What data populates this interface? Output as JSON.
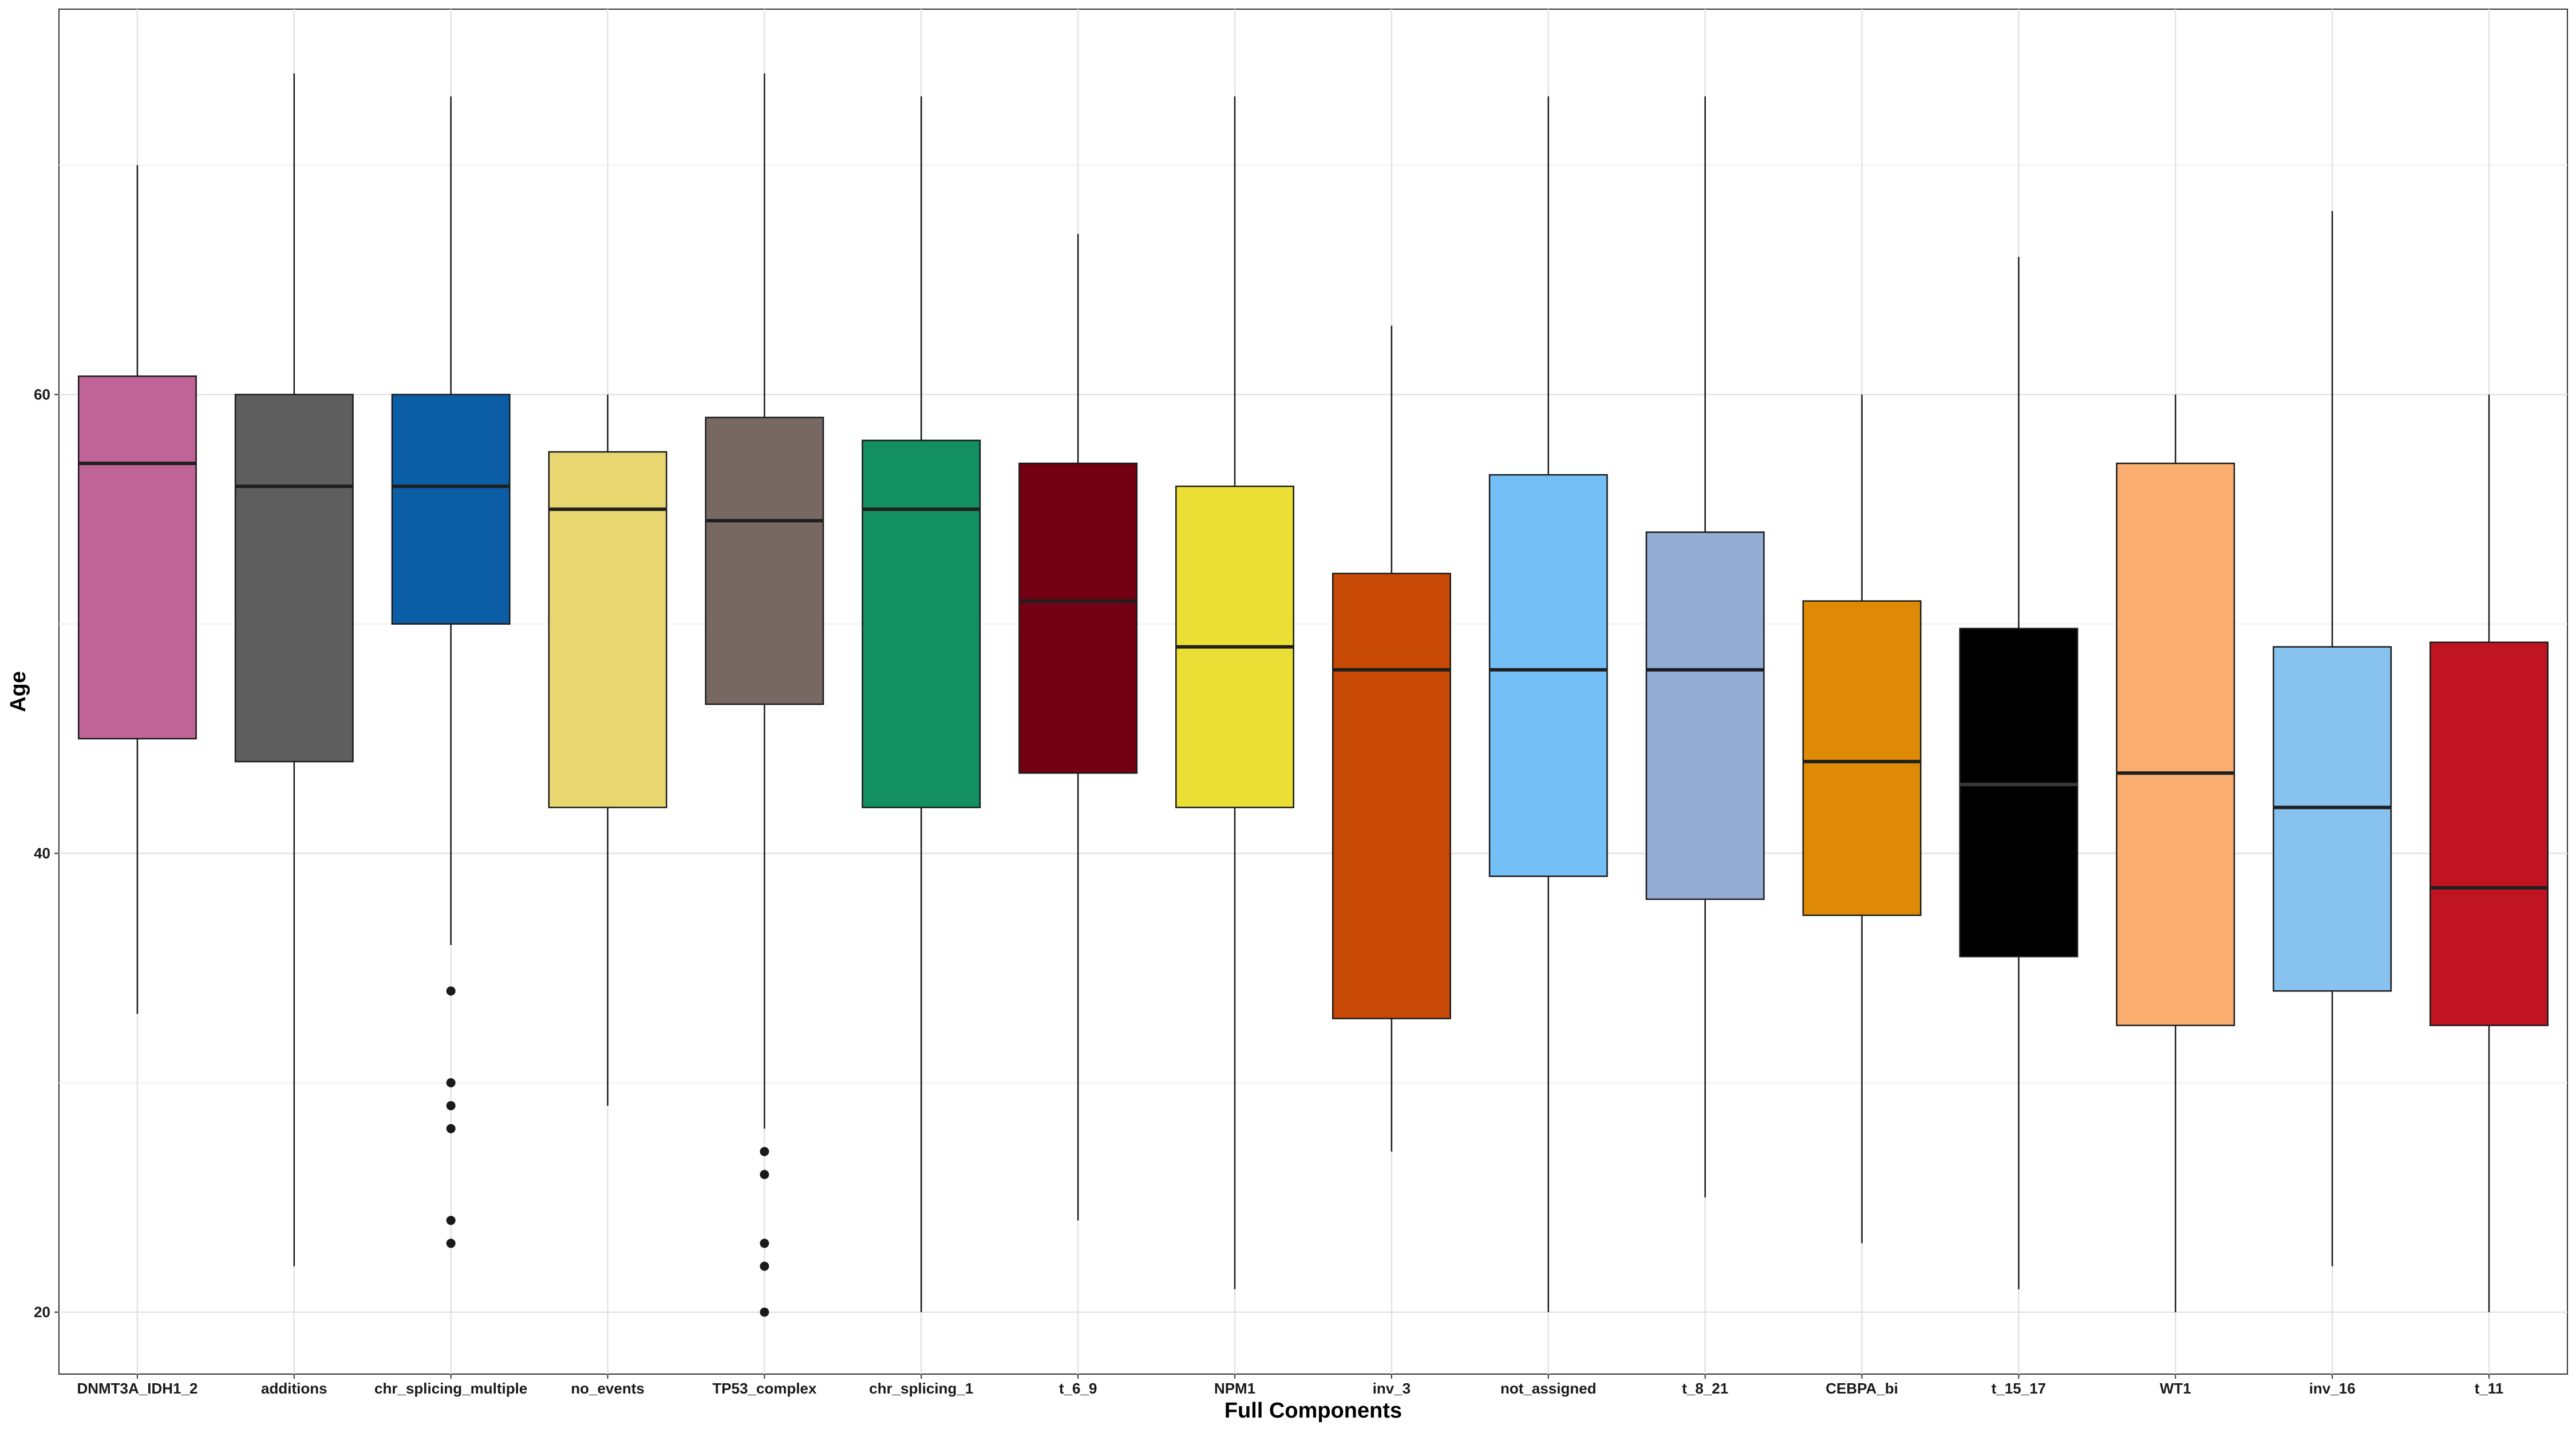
{
  "chart_data": {
    "type": "boxplot",
    "xlabel": "Full Components",
    "ylabel": "Age",
    "ylim": [
      17.3,
      76.8
    ],
    "yticks": [
      20,
      40,
      60
    ],
    "grid": true,
    "legend": "none",
    "categories": [
      "DNMT3A_IDH1_2",
      "additions",
      "chr_splicing_multiple",
      "no_events",
      "TP53_complex",
      "chr_splicing_1",
      "t_6_9",
      "NPM1",
      "inv_3",
      "not_assigned",
      "t_8_21",
      "CEBPA_bi",
      "t_15_17",
      "WT1",
      "inv_16",
      "t_11"
    ],
    "colors": [
      "#C06397",
      "#5E5E5E",
      "#0B5DA5",
      "#E8D770",
      "#786864",
      "#128F63",
      "#740014",
      "#EBDF35",
      "#C84905",
      "#75BFF7",
      "#94ADD5",
      "#DE8A07",
      "#000000",
      "#FAAE70",
      "#88C2EF",
      "#C01423"
    ],
    "boxes": [
      {
        "min": 33.0,
        "q1": 45.0,
        "median": 57.0,
        "q3": 60.8,
        "max": 70.0,
        "outliers": []
      },
      {
        "min": 22.0,
        "q1": 44.0,
        "median": 56.0,
        "q3": 60.0,
        "max": 74.0,
        "outliers": []
      },
      {
        "min": 36.0,
        "q1": 50.0,
        "median": 56.0,
        "q3": 60.0,
        "max": 73.0,
        "outliers": [
          34,
          30,
          29,
          28,
          24,
          23
        ]
      },
      {
        "min": 29.0,
        "q1": 42.0,
        "median": 55.0,
        "q3": 57.5,
        "max": 60.0,
        "outliers": []
      },
      {
        "min": 28.0,
        "q1": 46.5,
        "median": 54.5,
        "q3": 59.0,
        "max": 74.0,
        "outliers": [
          27,
          26,
          23,
          22,
          20
        ]
      },
      {
        "min": 20.0,
        "q1": 42.0,
        "median": 55.0,
        "q3": 58.0,
        "max": 73.0,
        "outliers": []
      },
      {
        "min": 24.0,
        "q1": 43.5,
        "median": 51.0,
        "q3": 57.0,
        "max": 67.0,
        "outliers": []
      },
      {
        "min": 21.0,
        "q1": 42.0,
        "median": 49.0,
        "q3": 56.0,
        "max": 73.0,
        "outliers": []
      },
      {
        "min": 27.0,
        "q1": 32.8,
        "median": 48.0,
        "q3": 52.2,
        "max": 63.0,
        "outliers": []
      },
      {
        "min": 20.0,
        "q1": 39.0,
        "median": 48.0,
        "q3": 56.5,
        "max": 73.0,
        "outliers": []
      },
      {
        "min": 25.0,
        "q1": 38.0,
        "median": 48.0,
        "q3": 54.0,
        "max": 73.0,
        "outliers": []
      },
      {
        "min": 23.0,
        "q1": 37.3,
        "median": 44.0,
        "q3": 51.0,
        "max": 60.0,
        "outliers": []
      },
      {
        "min": 21.0,
        "q1": 35.5,
        "median": 43.0,
        "q3": 49.8,
        "max": 66.0,
        "outliers": []
      },
      {
        "min": 20.0,
        "q1": 32.5,
        "median": 43.5,
        "q3": 57.0,
        "max": 60.0,
        "outliers": []
      },
      {
        "min": 22.0,
        "q1": 34.0,
        "median": 42.0,
        "q3": 49.0,
        "max": 68.0,
        "outliers": []
      },
      {
        "min": 20.0,
        "q1": 32.5,
        "median": 38.5,
        "q3": 49.2,
        "max": 60.0,
        "outliers": []
      }
    ]
  }
}
